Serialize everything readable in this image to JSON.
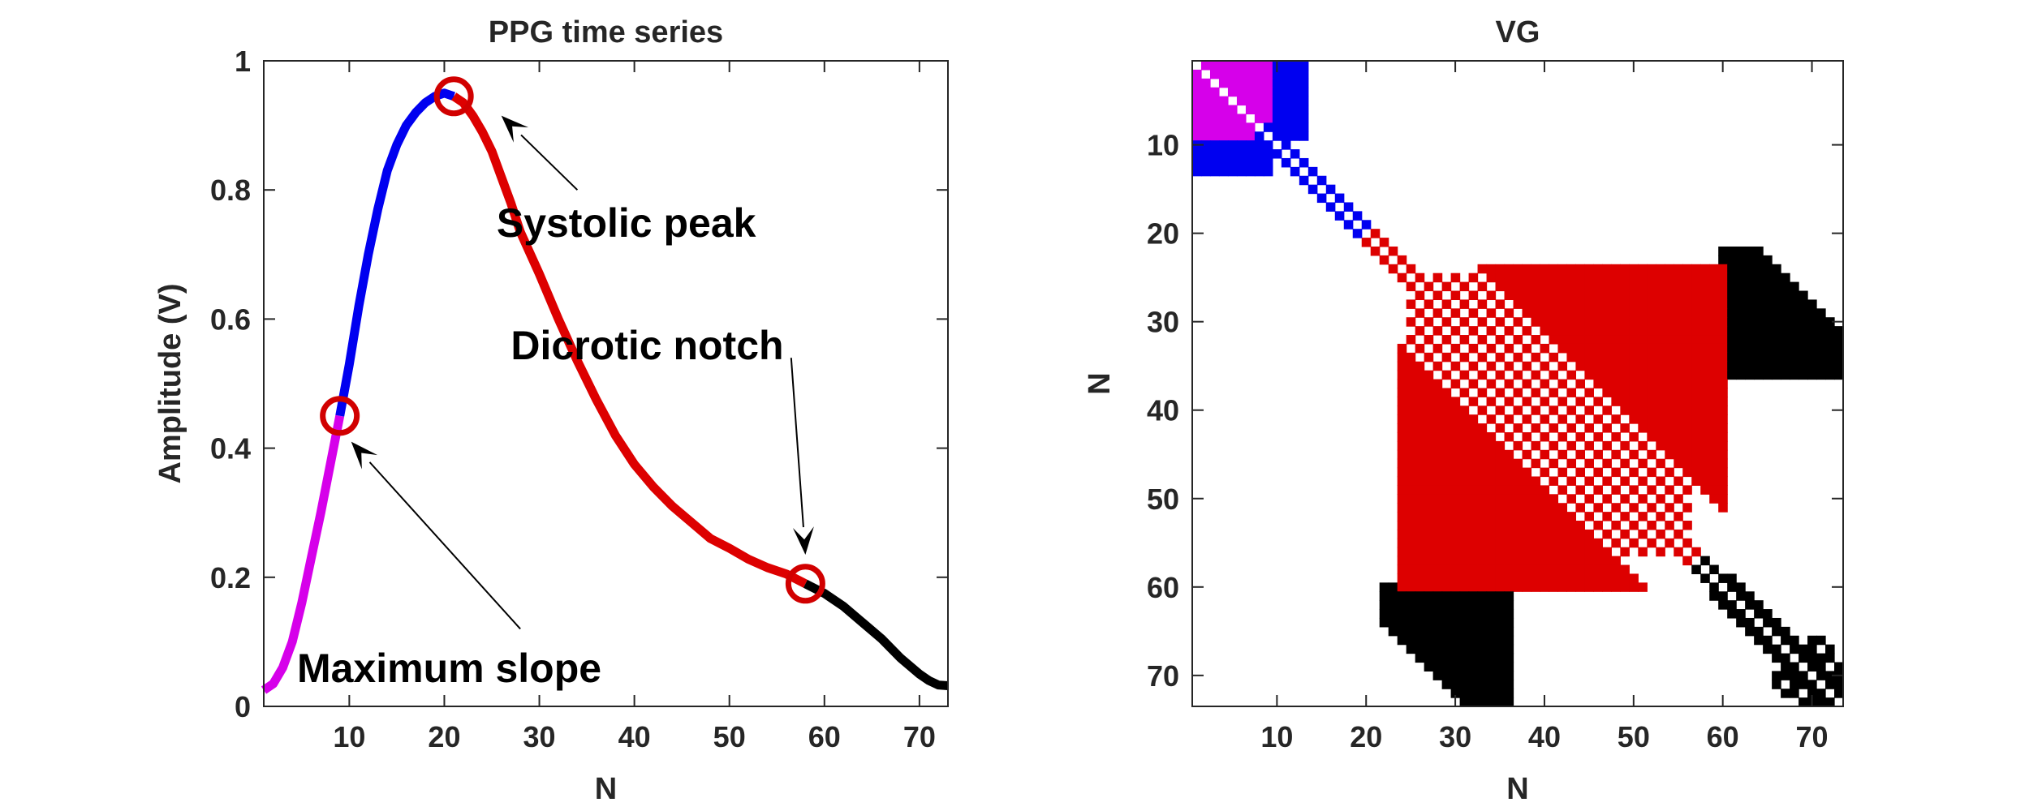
{
  "colors": {
    "segment_rise_start": "#d600ea",
    "segment_rise_end": "#0000f0",
    "segment_decay": "#dd0000",
    "segment_tail": "#000000",
    "marker": "#d10000",
    "axis": "#262626"
  },
  "chart_data": [
    {
      "type": "line",
      "title": "PPG time series",
      "xlabel": "N",
      "ylabel": "Amplitude (V)",
      "xlim": [
        1,
        73
      ],
      "ylim": [
        0,
        1
      ],
      "xticks": [
        10,
        20,
        30,
        40,
        50,
        60,
        70
      ],
      "yticks": [
        0,
        0.2,
        0.4,
        0.6,
        0.8,
        1
      ],
      "ytick_labels": [
        "0",
        "0.2",
        "0.4",
        "0.6",
        "0.8",
        "1"
      ],
      "grid": false,
      "series": [
        {
          "color": "#d600ea",
          "x": [
            1,
            2,
            3,
            4,
            5,
            6,
            7,
            8,
            9
          ],
          "y": [
            0.025,
            0.035,
            0.06,
            0.1,
            0.16,
            0.23,
            0.3,
            0.375,
            0.45
          ]
        },
        {
          "color": "#0000f0",
          "x": [
            9,
            10,
            11,
            12,
            13,
            14,
            15,
            16,
            17,
            18,
            19,
            20,
            21
          ],
          "y": [
            0.45,
            0.53,
            0.62,
            0.7,
            0.77,
            0.83,
            0.87,
            0.9,
            0.92,
            0.935,
            0.945,
            0.95,
            0.945
          ]
        },
        {
          "color": "#dd0000",
          "x": [
            21,
            22,
            23,
            24,
            25,
            26,
            27,
            28,
            30,
            32,
            34,
            36,
            38,
            40,
            42,
            44,
            46,
            48,
            50,
            52,
            54,
            56,
            58
          ],
          "y": [
            0.945,
            0.935,
            0.915,
            0.89,
            0.86,
            0.82,
            0.78,
            0.735,
            0.67,
            0.6,
            0.535,
            0.475,
            0.42,
            0.375,
            0.34,
            0.31,
            0.285,
            0.26,
            0.245,
            0.228,
            0.215,
            0.205,
            0.19
          ]
        },
        {
          "color": "#000000",
          "x": [
            58,
            60,
            62,
            64,
            66,
            68,
            70,
            71,
            72,
            73
          ],
          "y": [
            0.19,
            0.175,
            0.155,
            0.13,
            0.105,
            0.075,
            0.05,
            0.04,
            0.033,
            0.032
          ]
        }
      ],
      "markers": [
        {
          "x": 9,
          "y": 0.45
        },
        {
          "x": 21,
          "y": 0.945
        },
        {
          "x": 58,
          "y": 0.19
        }
      ],
      "annotations": [
        {
          "text": "Systolic peak",
          "x": 25.5,
          "y": 0.75,
          "arrow_from": [
            34,
            0.8
          ],
          "arrow_to": [
            26,
            0.915
          ]
        },
        {
          "text": "Dicrotic notch",
          "x": 27,
          "y": 0.56,
          "arrow_from": [
            56.5,
            0.54
          ],
          "arrow_to": [
            58,
            0.235
          ]
        },
        {
          "text": "Maximum slope",
          "x": 4.5,
          "y": 0.06,
          "arrow_from": [
            28,
            0.12
          ],
          "arrow_to": [
            10.2,
            0.41
          ]
        }
      ]
    },
    {
      "type": "heatmap",
      "title": "VG",
      "xlabel": "N",
      "ylabel": "N",
      "xlim": [
        1,
        73
      ],
      "ylim": [
        1,
        73
      ],
      "y_reversed": true,
      "xticks": [
        10,
        20,
        30,
        40,
        50,
        60,
        70
      ],
      "yticks": [
        10,
        20,
        30,
        40,
        50,
        60,
        70
      ],
      "grid": false,
      "segments": [
        {
          "color": "#d600ea",
          "range": [
            1,
            9
          ]
        },
        {
          "color": "#0000f0",
          "range": [
            9,
            21
          ]
        },
        {
          "color": "#dd0000",
          "range": [
            21,
            58
          ]
        },
        {
          "color": "#000000",
          "range": [
            58,
            73
          ]
        }
      ]
    }
  ]
}
